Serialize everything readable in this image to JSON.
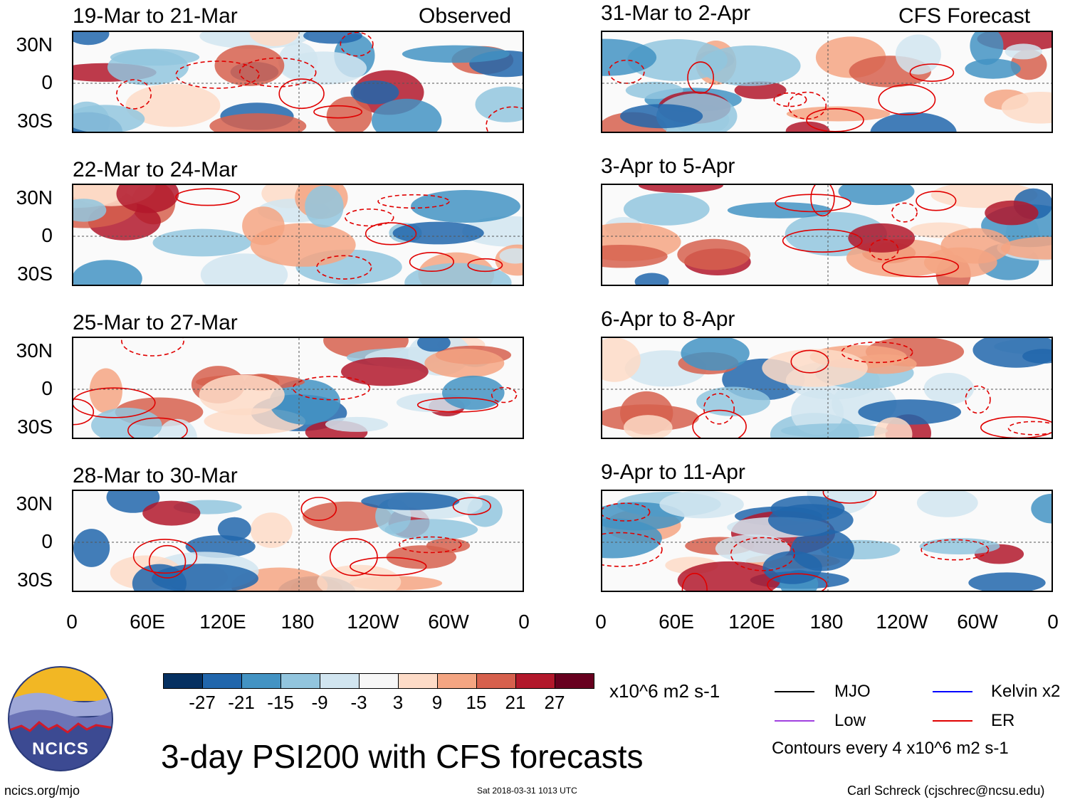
{
  "chart_data": {
    "type": "heatmap",
    "title": "3-day PSI200 with CFS forecasts",
    "columns": [
      {
        "name": "Observed",
        "periods": [
          "19-Mar to 21-Mar",
          "22-Mar to 24-Mar",
          "25-Mar to 27-Mar",
          "28-Mar to 30-Mar"
        ]
      },
      {
        "name": "CFS Forecast",
        "periods": [
          "31-Mar to 2-Apr",
          "3-Apr to 5-Apr",
          "6-Apr to 8-Apr",
          "9-Apr to 11-Apr"
        ]
      }
    ],
    "x_ticks": [
      "0",
      "60E",
      "120E",
      "180",
      "120W",
      "60W",
      "0"
    ],
    "y_ticks": [
      "30N",
      "0",
      "30S"
    ],
    "colorbar": {
      "unit": "x10^6 m2 s-1",
      "levels": [
        "-27",
        "-21",
        "-15",
        "-9",
        "-3",
        "3",
        "9",
        "15",
        "21",
        "27"
      ],
      "colors": [
        "#053061",
        "#2166ac",
        "#4393c3",
        "#92c5de",
        "#d1e5f0",
        "#f7f7f7",
        "#fddbc7",
        "#f4a582",
        "#d6604d",
        "#b2182b",
        "#67001f"
      ]
    },
    "legend": [
      {
        "label": "MJO",
        "color": "#000000"
      },
      {
        "label": "Kelvin x2",
        "color": "#0000ff"
      },
      {
        "label": "Low",
        "color": "#a040e0"
      },
      {
        "label": "ER",
        "color": "#e00000"
      }
    ],
    "contour_note": "Contours every 4 x10^6 m2 s-1"
  },
  "footer": {
    "logo_text": "NCICS",
    "url": "ncics.org/mjo",
    "timestamp": "Sat 2018-03-31 1013 UTC",
    "author": "Carl Schreck (cjschrec@ncsu.edu)"
  }
}
